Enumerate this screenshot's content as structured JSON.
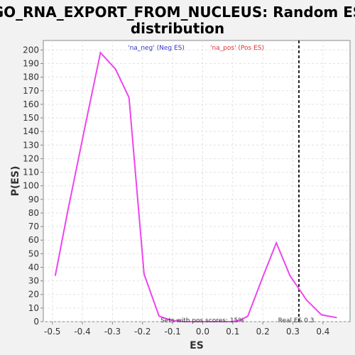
{
  "chart_data": {
    "type": "line",
    "title_line1": "GO_RNA_EXPORT_FROM_NUCLEUS: Random ES",
    "title_line2": "distribution",
    "xlabel": "ES",
    "ylabel": "P(ES)",
    "xlim": [
      -0.53,
      0.49
    ],
    "ylim": [
      0,
      207
    ],
    "x_ticks": [
      -0.5,
      -0.4,
      -0.3,
      -0.2,
      -0.1,
      0.0,
      0.1,
      0.2,
      0.3,
      0.4
    ],
    "x_tick_labels": [
      "-0.5",
      "-0.4",
      "-0.3",
      "-0.2",
      "-0.1",
      "0.0",
      "0.1",
      "0.2",
      "0.3",
      "0.4"
    ],
    "y_ticks": [
      0,
      10,
      20,
      30,
      40,
      50,
      60,
      70,
      80,
      90,
      100,
      110,
      120,
      130,
      140,
      150,
      160,
      170,
      180,
      190,
      200
    ],
    "grid": true,
    "legend": [
      {
        "label": "'na_neg' (Neg ES)",
        "color": "#3333cc"
      },
      {
        "label": "'na_pos' (Pos ES)",
        "color": "#dd3333"
      }
    ],
    "series": [
      {
        "color": "#ee44ee",
        "x": [
          -0.49,
          -0.45,
          -0.39,
          -0.34,
          -0.29,
          -0.245,
          -0.195,
          -0.145,
          -0.105,
          -0.065,
          -0.025,
          0.015,
          0.055,
          0.095,
          0.125,
          0.15,
          0.2,
          0.245,
          0.29,
          0.345,
          0.395,
          0.445
        ],
        "y": [
          34,
          80,
          145,
          198,
          186,
          165,
          35,
          4,
          1,
          0,
          0,
          0,
          0,
          0,
          1,
          4,
          33,
          58,
          34,
          16,
          5,
          3
        ]
      }
    ],
    "real_es": {
      "value": 0.32,
      "label": "Real ES 0.3"
    },
    "annotation": "Sets with pos scores: 15%"
  }
}
